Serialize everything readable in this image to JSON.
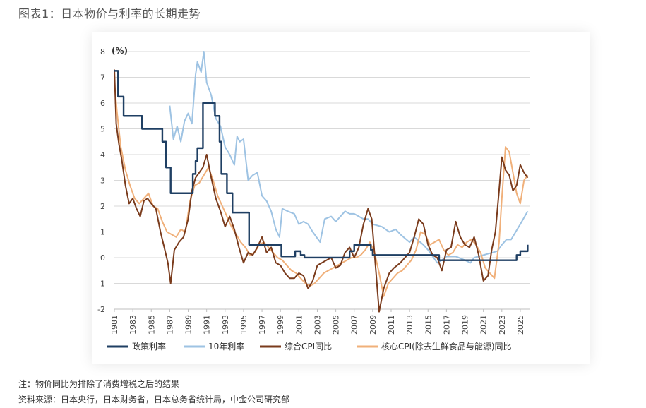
{
  "figure": {
    "title": "图表1：日本物价与利率的长期走势",
    "note": "注：物价同比为排除了消费增税之后的结果",
    "source": "资料来源：日本央行，日本财务省，日本总务省统计局，中金公司研究部"
  },
  "chart_data": {
    "type": "line",
    "unit_label": "(%)",
    "xlim": [
      1981,
      2026
    ],
    "ylim": [
      -2,
      8
    ],
    "y_ticks": [
      -2,
      -1,
      0,
      1,
      2,
      3,
      4,
      5,
      6,
      7,
      8
    ],
    "x_ticks": [
      1981,
      1983,
      1985,
      1987,
      1989,
      1991,
      1993,
      1995,
      1997,
      1999,
      2001,
      2003,
      2005,
      2007,
      2009,
      2011,
      2013,
      2015,
      2017,
      2019,
      2021,
      2023,
      2025
    ],
    "grid": "horizontal",
    "legend_position": "bottom",
    "colors": {
      "policy_rate": "#1f3f63",
      "jgb10y": "#9ec3e3",
      "cpi": "#7a3b1c",
      "core_cpi": "#f0b07a"
    },
    "series": [
      {
        "key": "policy_rate",
        "name": "政策利率",
        "x": [
          1981.0,
          1981.4,
          1981.8,
          1982.0,
          1983.7,
          1984.0,
          1986.0,
          1986.2,
          1986.6,
          1987.1,
          1988.0,
          1989.4,
          1989.5,
          1989.8,
          1990.0,
          1990.6,
          1991.6,
          1991.9,
          1992.4,
          1992.6,
          1993.2,
          1993.8,
          1995.3,
          1995.6,
          1998.0,
          1999.1,
          2000.6,
          2001.2,
          2001.6,
          2006.5,
          2007.0,
          2008.8,
          2009.0,
          2010.0,
          2016.0,
          2016.2,
          2024.2,
          2024.6,
          2025.0,
          2025.8
        ],
        "y": [
          7.25,
          6.25,
          6.25,
          5.5,
          5.5,
          5.0,
          5.0,
          4.5,
          3.5,
          2.5,
          2.5,
          2.5,
          3.25,
          3.75,
          4.25,
          6.0,
          6.0,
          5.5,
          4.5,
          3.25,
          2.5,
          1.75,
          1.75,
          0.5,
          0.5,
          0.05,
          0.25,
          0.1,
          0.001,
          0.25,
          0.5,
          0.3,
          0.1,
          0.1,
          0.1,
          -0.1,
          -0.1,
          0.1,
          0.25,
          0.5
        ]
      },
      {
        "key": "jgb10y",
        "name": "10年利率",
        "x": [
          1987.0,
          1987.4,
          1987.8,
          1988.2,
          1988.6,
          1989.0,
          1989.4,
          1989.8,
          1990.0,
          1990.4,
          1990.7,
          1991.0,
          1991.5,
          1992.0,
          1992.5,
          1993.0,
          1993.5,
          1994.0,
          1994.3,
          1994.6,
          1995.0,
          1995.5,
          1996.0,
          1996.5,
          1997.0,
          1997.5,
          1998.0,
          1998.5,
          1998.9,
          1999.2,
          1999.8,
          2000.5,
          2001.0,
          2001.5,
          2002.0,
          2002.5,
          2003.3,
          2003.8,
          2004.5,
          2005.0,
          2006.0,
          2006.5,
          2007.0,
          2007.5,
          2008.0,
          2008.5,
          2009.0,
          2010.0,
          2010.8,
          2011.5,
          2012.0,
          2013.0,
          2013.5,
          2014.5,
          2015.0,
          2016.0,
          2016.5,
          2017.0,
          2018.0,
          2019.0,
          2019.6,
          2020.0,
          2021.0,
          2022.0,
          2022.5,
          2023.0,
          2023.5,
          2024.0,
          2024.5,
          2025.0,
          2025.8
        ],
        "y": [
          5.9,
          4.6,
          5.1,
          4.5,
          5.3,
          5.6,
          5.2,
          7.1,
          7.6,
          7.2,
          8.0,
          6.8,
          6.3,
          5.4,
          5.1,
          4.3,
          4.0,
          3.6,
          4.7,
          4.5,
          4.6,
          3.0,
          3.2,
          3.3,
          2.4,
          2.2,
          1.8,
          1.1,
          0.8,
          1.9,
          1.8,
          1.7,
          1.3,
          1.4,
          1.3,
          1.0,
          0.6,
          1.5,
          1.6,
          1.4,
          1.8,
          1.7,
          1.7,
          1.6,
          1.5,
          1.5,
          1.3,
          1.2,
          1.0,
          1.1,
          0.9,
          0.6,
          0.8,
          0.5,
          0.3,
          -0.2,
          -0.1,
          0.05,
          0.05,
          -0.1,
          -0.2,
          0.0,
          0.1,
          0.2,
          0.25,
          0.5,
          0.7,
          0.7,
          1.0,
          1.3,
          1.8
        ]
      },
      {
        "key": "cpi",
        "name": "综合CPI同比",
        "x": [
          1981.0,
          1981.2,
          1981.5,
          1981.8,
          1982.2,
          1982.6,
          1983.0,
          1983.4,
          1983.8,
          1984.2,
          1984.6,
          1985.0,
          1985.5,
          1986.0,
          1986.4,
          1986.8,
          1987.1,
          1987.5,
          1988.0,
          1988.5,
          1989.0,
          1989.4,
          1989.8,
          1990.2,
          1990.6,
          1991.0,
          1991.5,
          1992.0,
          1992.5,
          1993.0,
          1993.5,
          1994.0,
          1994.5,
          1995.0,
          1995.5,
          1996.0,
          1996.5,
          1997.0,
          1997.5,
          1998.0,
          1998.5,
          1999.0,
          1999.5,
          2000.0,
          2000.5,
          2001.0,
          2001.5,
          2002.0,
          2002.5,
          2003.0,
          2003.5,
          2004.0,
          2004.5,
          2005.0,
          2005.5,
          2006.0,
          2006.5,
          2007.0,
          2007.5,
          2008.0,
          2008.5,
          2008.9,
          2009.3,
          2009.7,
          2010.2,
          2010.8,
          2011.3,
          2012.0,
          2012.5,
          2013.0,
          2013.5,
          2014.0,
          2014.5,
          2015.0,
          2015.5,
          2016.0,
          2016.5,
          2017.0,
          2017.5,
          2018.0,
          2018.5,
          2019.0,
          2019.5,
          2020.0,
          2020.5,
          2021.0,
          2021.5,
          2021.9,
          2022.3,
          2022.7,
          2023.0,
          2023.4,
          2023.8,
          2024.2,
          2024.6,
          2025.0,
          2025.4,
          2025.8
        ],
        "y": [
          7.3,
          5.2,
          4.4,
          3.8,
          2.8,
          2.1,
          2.3,
          1.9,
          1.6,
          2.2,
          2.3,
          2.1,
          1.9,
          1.0,
          0.4,
          -0.2,
          -1.0,
          0.3,
          0.6,
          0.8,
          1.5,
          2.6,
          3.1,
          3.3,
          3.5,
          4.0,
          3.1,
          2.3,
          1.8,
          1.2,
          1.6,
          1.1,
          0.4,
          -0.2,
          0.2,
          0.1,
          0.4,
          0.8,
          0.2,
          0.4,
          -0.2,
          -0.3,
          -0.6,
          -0.8,
          -0.8,
          -0.6,
          -0.7,
          -1.2,
          -0.9,
          -0.3,
          -0.2,
          -0.1,
          0.0,
          -0.4,
          -0.3,
          0.2,
          0.4,
          0.0,
          0.4,
          1.3,
          1.9,
          1.5,
          -0.3,
          -2.1,
          -1.2,
          -0.6,
          -0.4,
          -0.2,
          0.0,
          0.2,
          0.8,
          1.5,
          1.3,
          0.5,
          0.1,
          0.0,
          -0.5,
          0.3,
          0.4,
          1.4,
          0.8,
          0.5,
          0.4,
          0.8,
          0.1,
          -0.9,
          -0.7,
          0.3,
          1.0,
          2.6,
          3.9,
          3.4,
          3.2,
          2.6,
          2.8,
          3.6,
          3.3,
          3.1
        ]
      },
      {
        "key": "core_cpi",
        "name": "核心CPI(除去生鲜食品与能源)同比",
        "x": [
          1981.0,
          1981.3,
          1981.7,
          1982.2,
          1982.7,
          1983.2,
          1983.7,
          1984.2,
          1984.7,
          1985.2,
          1985.7,
          1986.2,
          1986.7,
          1987.2,
          1987.7,
          1988.2,
          1988.7,
          1989.2,
          1989.7,
          1990.2,
          1990.7,
          1991.2,
          1991.7,
          1992.2,
          1992.7,
          1993.2,
          1993.7,
          1994.2,
          1994.7,
          1995.2,
          1995.7,
          1996.2,
          1996.7,
          1997.2,
          1997.7,
          1998.2,
          1998.7,
          1999.2,
          1999.7,
          2000.2,
          2000.7,
          2001.2,
          2001.7,
          2002.2,
          2002.7,
          2003.2,
          2003.7,
          2004.2,
          2004.7,
          2005.2,
          2005.7,
          2006.2,
          2006.7,
          2007.2,
          2007.7,
          2008.2,
          2008.7,
          2009.2,
          2009.7,
          2010.2,
          2010.7,
          2011.2,
          2011.7,
          2012.2,
          2012.7,
          2013.2,
          2013.7,
          2014.2,
          2014.7,
          2015.2,
          2015.7,
          2016.2,
          2016.7,
          2017.2,
          2017.7,
          2018.2,
          2018.7,
          2019.2,
          2019.7,
          2020.2,
          2020.7,
          2021.2,
          2021.7,
          2022.2,
          2022.7,
          2023.0,
          2023.4,
          2023.8,
          2024.2,
          2024.6,
          2025.0,
          2025.4,
          2025.8
        ],
        "y": [
          6.8,
          5.6,
          4.3,
          3.4,
          2.8,
          2.3,
          2.1,
          2.3,
          2.5,
          2.0,
          1.9,
          1.4,
          1.0,
          0.9,
          0.8,
          1.1,
          1.0,
          2.2,
          2.8,
          2.9,
          3.2,
          3.5,
          3.0,
          2.4,
          2.0,
          1.6,
          1.2,
          0.9,
          0.6,
          0.4,
          0.1,
          0.2,
          0.5,
          0.6,
          0.4,
          0.2,
          0.0,
          -0.1,
          -0.3,
          -0.5,
          -0.6,
          -0.8,
          -1.0,
          -1.1,
          -1.0,
          -0.8,
          -0.6,
          -0.5,
          -0.4,
          -0.3,
          -0.2,
          -0.1,
          0.0,
          0.0,
          0.1,
          0.3,
          0.6,
          0.2,
          -0.6,
          -1.5,
          -1.0,
          -0.8,
          -0.6,
          -0.5,
          -0.3,
          -0.1,
          0.3,
          1.0,
          0.9,
          0.5,
          0.6,
          0.7,
          0.3,
          0.1,
          0.2,
          0.5,
          0.4,
          0.6,
          0.7,
          0.5,
          0.2,
          -0.4,
          -0.6,
          -0.8,
          0.6,
          2.3,
          4.3,
          4.1,
          3.3,
          2.5,
          2.1,
          3.0,
          3.2
        ]
      }
    ]
  }
}
